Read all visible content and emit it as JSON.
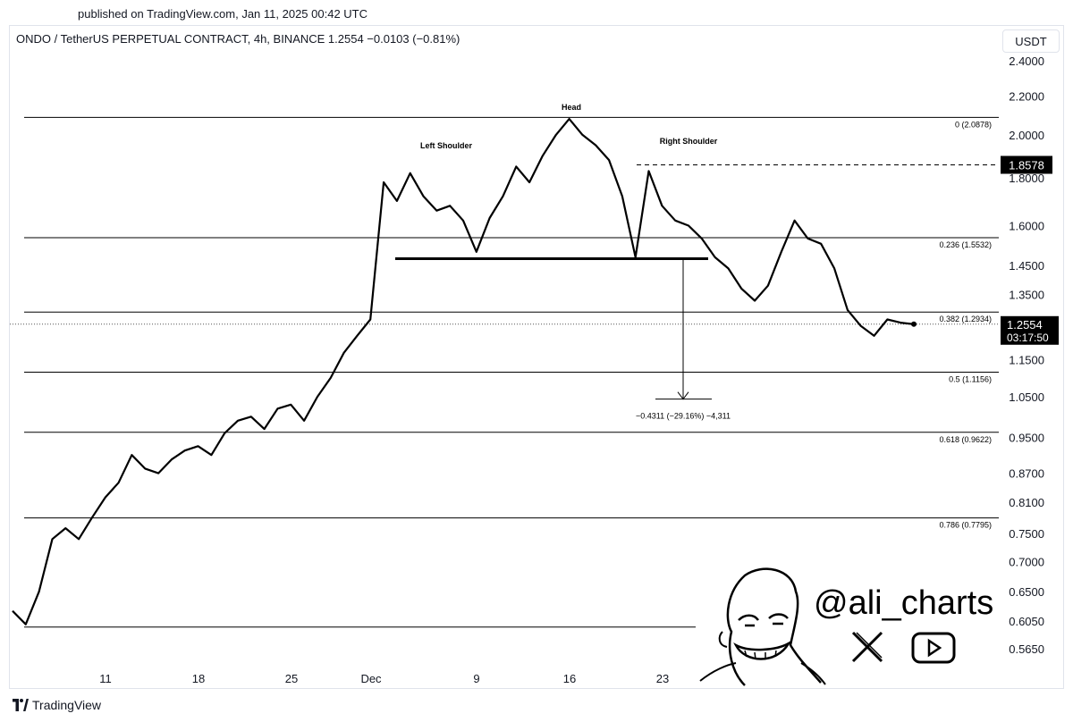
{
  "header": {
    "published": "published on TradingView.com, Jan 11, 2025 00:42 UTC",
    "symbol_line": "ONDO / TetherUS PERPETUAL CONTRACT, 4h, BINANCE  1.2554  −0.0103 (−0.81%)"
  },
  "footer": {
    "brand": "TradingView"
  },
  "watermark": {
    "handle": "@ali_charts"
  },
  "chart_data": {
    "type": "line",
    "currency": "USDT",
    "y_ticks": [
      "2.4000",
      "2.2000",
      "2.0000",
      "1.8000",
      "1.6000",
      "1.4500",
      "1.3500",
      "1.2500",
      "1.1500",
      "1.0500",
      "0.9500",
      "0.8700",
      "0.8100",
      "0.7500",
      "0.7000",
      "0.6500",
      "0.6050",
      "0.5650"
    ],
    "x_ticks": [
      "11",
      "18",
      "25",
      "Dec",
      "9",
      "16",
      "23"
    ],
    "last_price": "1.2554",
    "countdown": "03:17:50",
    "marked_price": "1.8578",
    "fib_levels": [
      {
        "label": "0 (2.0878)",
        "value": 2.0878
      },
      {
        "label": "0.236 (1.5532)",
        "value": 1.5532
      },
      {
        "label": "0.382 (1.2934)",
        "value": 1.2934
      },
      {
        "label": "0.5 (1.1156)",
        "value": 1.1156
      },
      {
        "label": "0.618 (0.9622)",
        "value": 0.9622
      },
      {
        "label": "0.786 (0.7795)",
        "value": 0.7795
      },
      {
        "label": "",
        "value": 0.596
      }
    ],
    "neckline": 1.475,
    "target": {
      "value": 1.044,
      "label": "−0.4311 (−29.16%) −4,311"
    },
    "annotations": [
      "Left Shoulder",
      "Head",
      "Right Shoulder"
    ],
    "series": [
      {
        "x": [
          "Nov 4",
          "Nov 5",
          "Nov 6",
          "Nov 7",
          "Nov 8",
          "Nov 9",
          "Nov 10",
          "Nov 11",
          "Nov 12",
          "Nov 13",
          "Nov 14",
          "Nov 15",
          "Nov 16",
          "Nov 17",
          "Nov 18",
          "Nov 19",
          "Nov 20",
          "Nov 21",
          "Nov 22",
          "Nov 23",
          "Nov 24",
          "Nov 25",
          "Nov 26",
          "Nov 27",
          "Nov 28",
          "Nov 29",
          "Nov 30",
          "Dec 1",
          "Dec 2",
          "Dec 3",
          "Dec 4",
          "Dec 5",
          "Dec 6",
          "Dec 7",
          "Dec 8",
          "Dec 9",
          "Dec 10",
          "Dec 11",
          "Dec 12",
          "Dec 13",
          "Dec 14",
          "Dec 15",
          "Dec 16",
          "Dec 17",
          "Dec 18",
          "Dec 19",
          "Dec 20",
          "Dec 21",
          "Dec 22",
          "Dec 23",
          "Dec 24",
          "Dec 25",
          "Dec 26",
          "Dec 27",
          "Dec 28",
          "Dec 29",
          "Dec 30",
          "Dec 31",
          "Jan 1",
          "Jan 2",
          "Jan 3",
          "Jan 4",
          "Jan 5",
          "Jan 6",
          "Jan 7",
          "Jan 8",
          "Jan 9",
          "Jan 10",
          "Jan 11"
        ],
        "values": [
          0.62,
          0.6,
          0.65,
          0.74,
          0.76,
          0.74,
          0.78,
          0.82,
          0.85,
          0.91,
          0.88,
          0.87,
          0.9,
          0.92,
          0.93,
          0.91,
          0.96,
          0.99,
          1.0,
          0.97,
          1.02,
          1.03,
          0.99,
          1.05,
          1.1,
          1.17,
          1.22,
          1.27,
          1.78,
          1.7,
          1.82,
          1.72,
          1.66,
          1.68,
          1.62,
          1.5,
          1.63,
          1.72,
          1.85,
          1.78,
          1.9,
          2.0,
          2.08,
          2.0,
          1.95,
          1.88,
          1.72,
          1.48,
          1.83,
          1.68,
          1.62,
          1.6,
          1.55,
          1.48,
          1.44,
          1.37,
          1.33,
          1.38,
          1.5,
          1.62,
          1.55,
          1.53,
          1.44,
          1.3,
          1.25,
          1.22,
          1.27,
          1.26,
          1.2554
        ]
      }
    ]
  }
}
